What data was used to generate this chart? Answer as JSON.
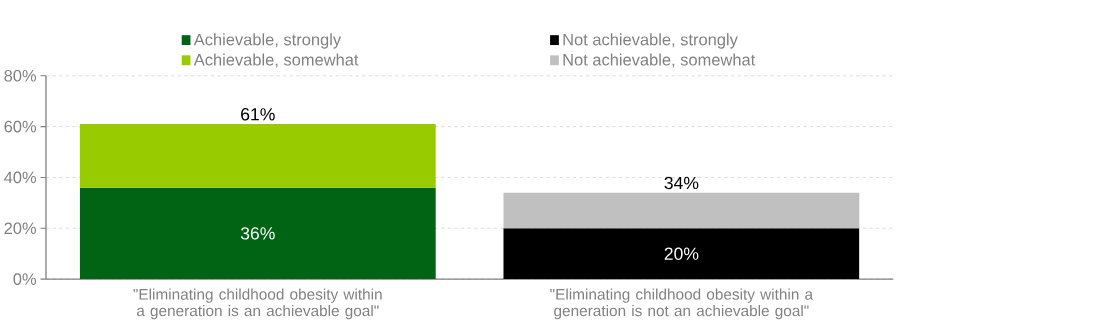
{
  "chart_data": {
    "type": "bar",
    "stacked": true,
    "categories": [
      "\"Eliminating childhood obesity within a generation is an achievable goal\"",
      "\"Eliminating childhood obesity within a generation is not an achievable goal\""
    ],
    "series": [
      {
        "name": "Achievable, strongly",
        "color": "#006414",
        "values": [
          36,
          null
        ],
        "value_labels": [
          "36%",
          null
        ]
      },
      {
        "name": "Achievable, somewhat",
        "color": "#99cc00",
        "values": [
          25,
          null
        ]
      },
      {
        "name": "Not achievable, strongly",
        "color": "#000000",
        "values": [
          null,
          20
        ],
        "value_labels": [
          null,
          "20%"
        ]
      },
      {
        "name": "Not achievable, somewhat",
        "color": "#c0c0c0",
        "values": [
          null,
          14
        ]
      }
    ],
    "totals": [
      "61%",
      "34%"
    ],
    "ylim": [
      0,
      80
    ],
    "yticks": [
      {
        "value": 0,
        "label": "0%"
      },
      {
        "value": 20,
        "label": "20%"
      },
      {
        "value": 40,
        "label": "40%"
      },
      {
        "value": 60,
        "label": "60%"
      },
      {
        "value": 80,
        "label": "80%"
      }
    ],
    "grid": "y",
    "legend": "top"
  }
}
